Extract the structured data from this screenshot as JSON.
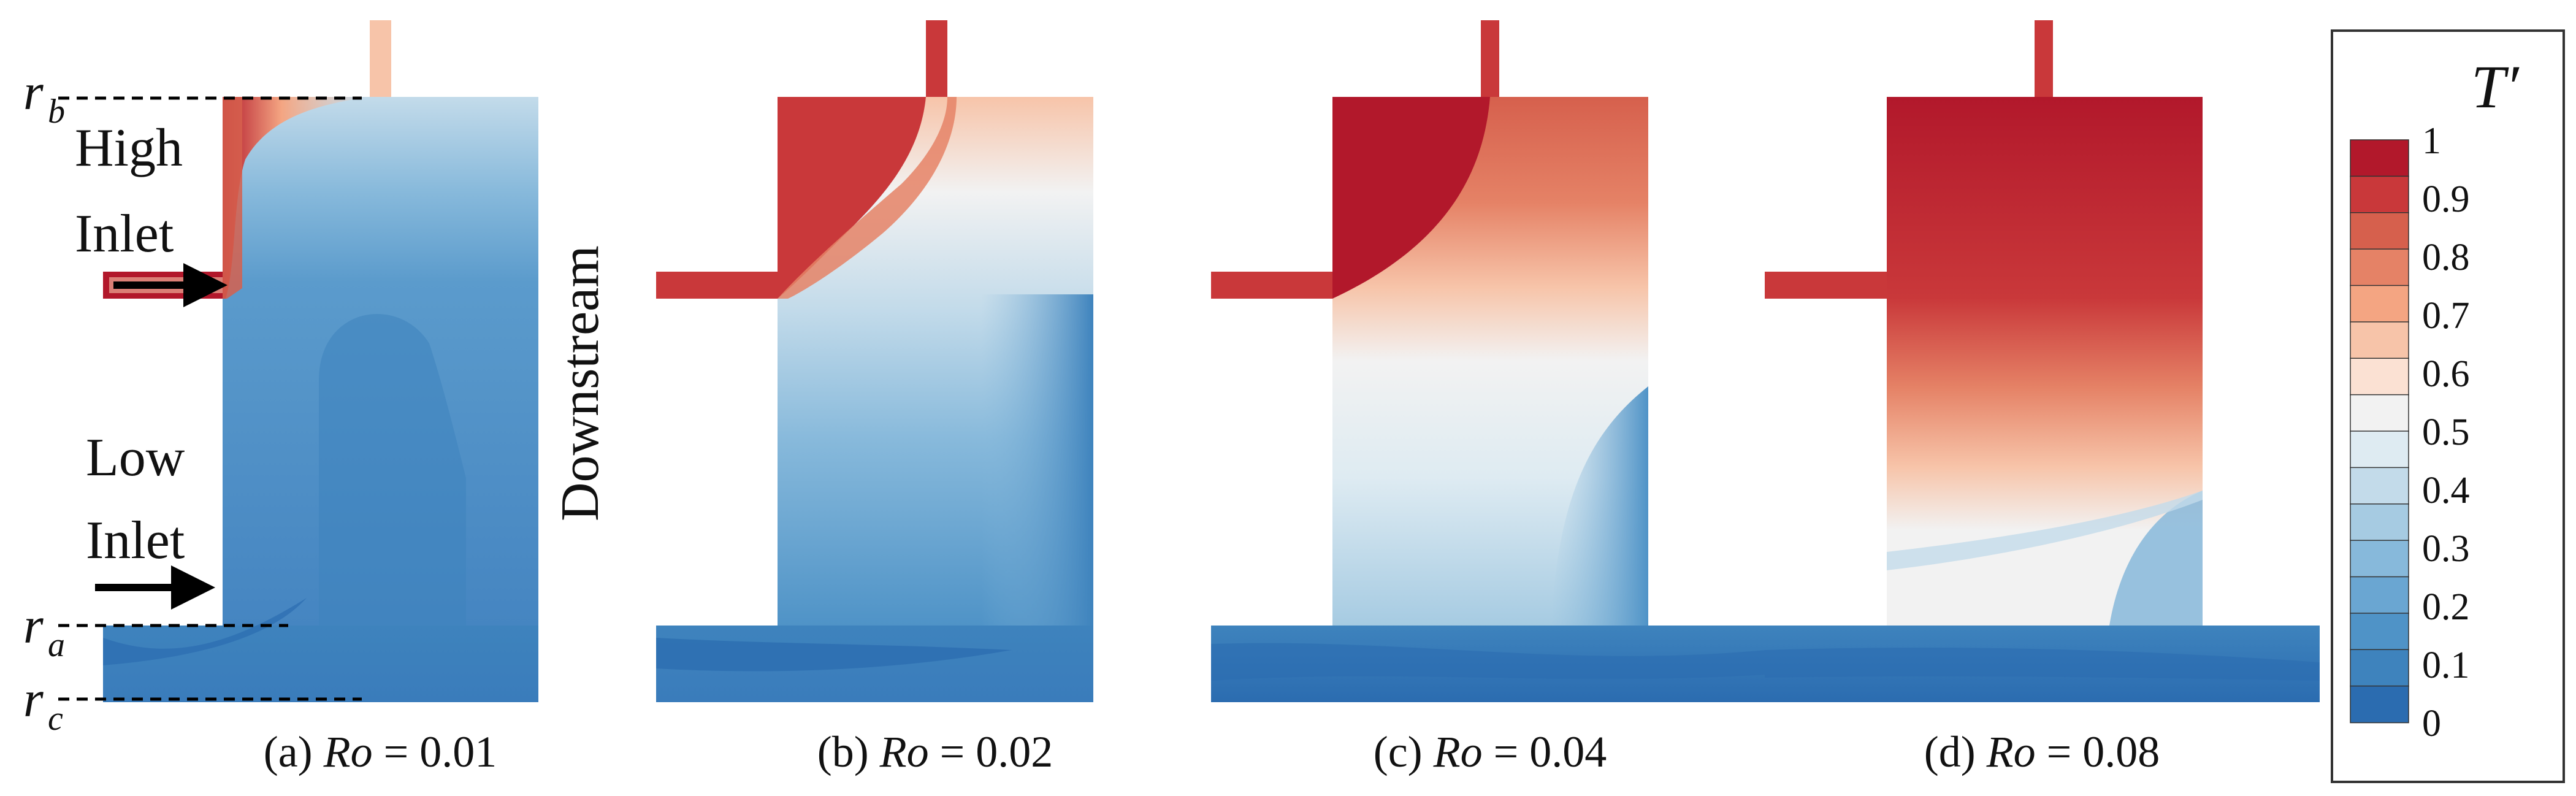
{
  "radius_labels": {
    "rb": {
      "base": "r",
      "sub": "b"
    },
    "ra": {
      "base": "r",
      "sub": "a"
    },
    "rc": {
      "base": "r",
      "sub": "c"
    }
  },
  "inlets": {
    "high_line1": "High",
    "high_line2": "Inlet",
    "low_line1": "Low",
    "low_line2": "Inlet"
  },
  "downstream_label": "Downstream",
  "panels": [
    {
      "caption_prefix": "(a)",
      "param": "Ro",
      "equals": "=",
      "value": "0.01"
    },
    {
      "caption_prefix": "(b)",
      "param": "Ro",
      "equals": "=",
      "value": "0.02"
    },
    {
      "caption_prefix": "(c)",
      "param": "Ro",
      "equals": "=",
      "value": "0.04"
    },
    {
      "caption_prefix": "(d)",
      "param": "Ro",
      "equals": "=",
      "value": "0.08"
    }
  ],
  "colorbar": {
    "title": "T′",
    "ticks": [
      "1",
      "0.9",
      "0.8",
      "0.7",
      "0.6",
      "0.5",
      "0.4",
      "0.3",
      "0.2",
      "0.1",
      "0"
    ],
    "levels": [
      "#b2182b",
      "#c9383a",
      "#d6604d",
      "#e58266",
      "#f4a582",
      "#f7c4a9",
      "#fbe1d3",
      "#f2f2f2",
      "#deebf2",
      "#c3dbea",
      "#a6cbe2",
      "#87b9db",
      "#6aa6d2",
      "#4f93c7",
      "#3e83bd",
      "#2b6cb0"
    ]
  }
}
